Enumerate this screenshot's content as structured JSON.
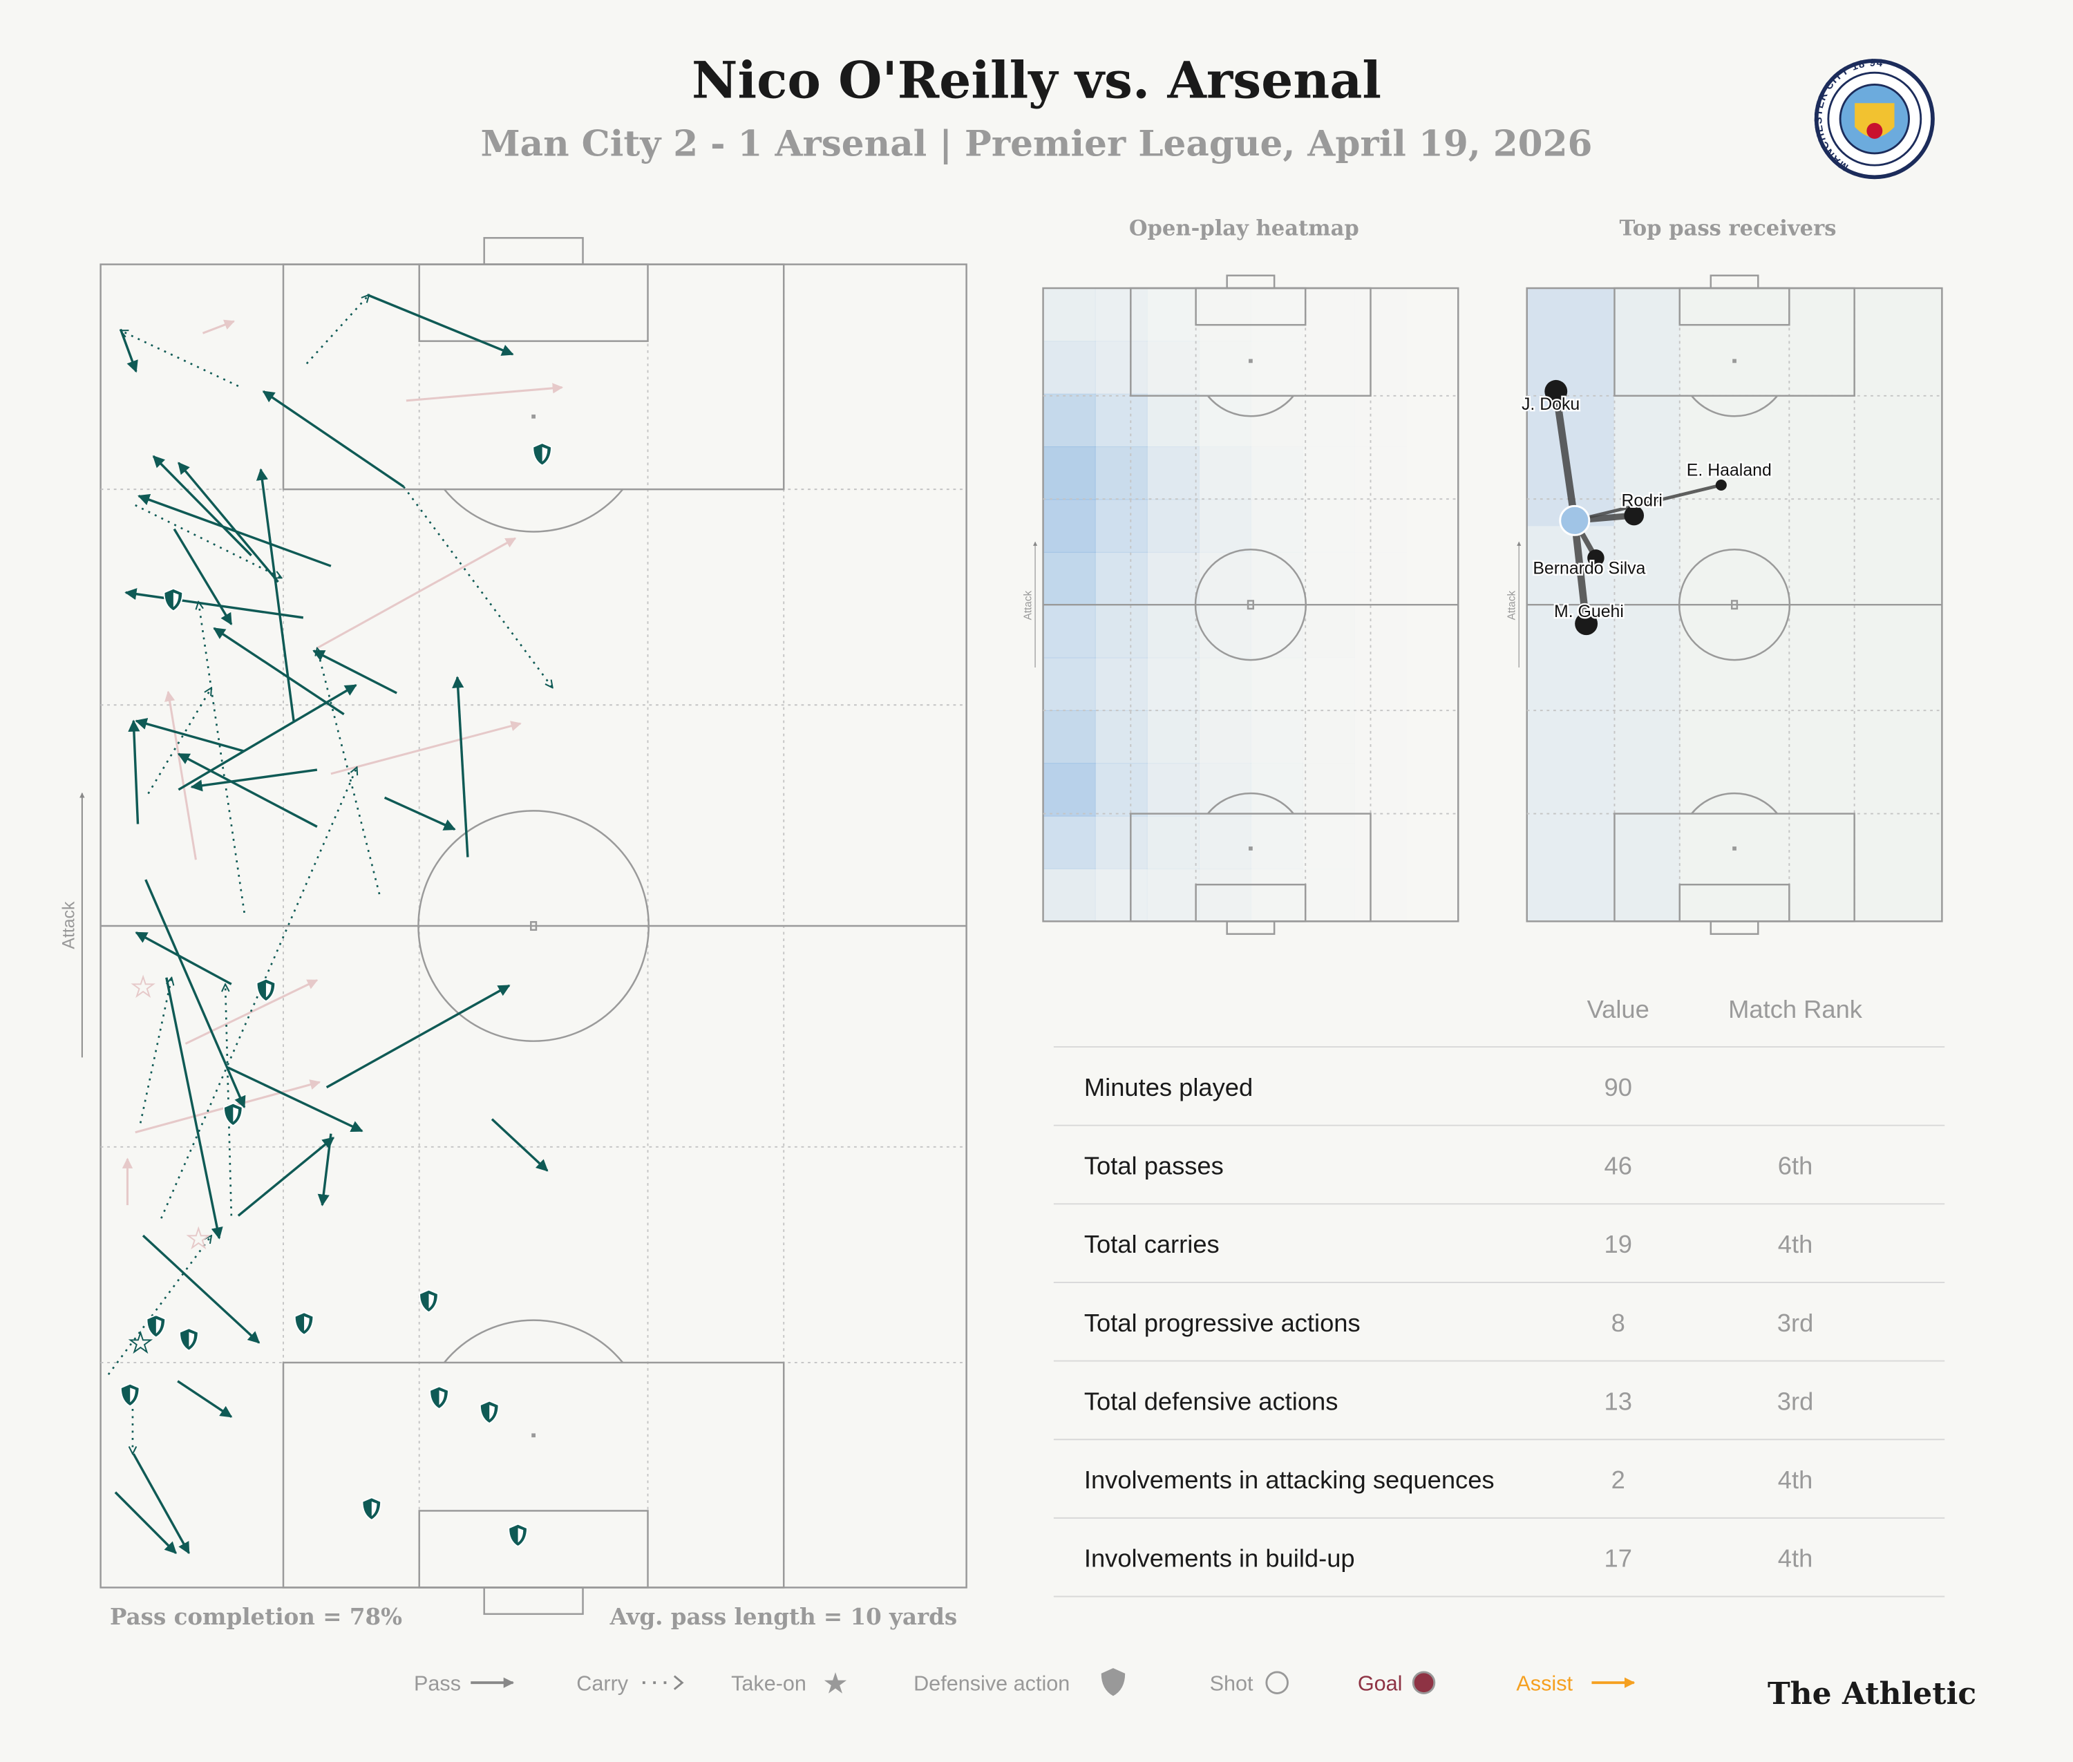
{
  "header": {
    "title": "Nico O'Reilly vs. Arsenal",
    "subtitle": "Man City 2 - 1 Arsenal | Premier League, April 19, 2026",
    "club_crest_text": "MANCHESTER CITY 18 94"
  },
  "colors": {
    "pass": "#0f5a55",
    "faded": "#e6c9c9",
    "heat": "#7fb0e0",
    "node": "#1a1a1a",
    "player_node": "#a0c4e6",
    "goal": "#8e3344",
    "assist": "#f5a020",
    "muted": "#999999"
  },
  "action_map": {
    "attack_label": "Attack",
    "pass_completion": "Pass completion = 78%",
    "avg_pass_length": "Avg. pass length = 10 yards",
    "chart_data": {
      "type": "scatter",
      "coordinate_units": "percent of pitch (x: width 0-100 left to right, y: length 0-100 toward attack)",
      "passes": [
        [
          30.8,
          97.7,
          47.6,
          93.2
        ],
        [
          35.0,
          83.2,
          18.8,
          90.4
        ],
        [
          2.3,
          95.1,
          4.1,
          91.9
        ],
        [
          26.6,
          77.2,
          4.4,
          82.5
        ],
        [
          17.4,
          78.0,
          6.1,
          85.5
        ],
        [
          20.5,
          76.0,
          9.0,
          85.0
        ],
        [
          22.3,
          65.5,
          18.5,
          84.5
        ],
        [
          23.4,
          73.3,
          2.9,
          75.2
        ],
        [
          34.2,
          67.6,
          24.6,
          70.8
        ],
        [
          16.6,
          63.2,
          4.1,
          65.5
        ],
        [
          28.1,
          66.0,
          13.1,
          72.5
        ],
        [
          25.0,
          57.5,
          9.0,
          63.0
        ],
        [
          9.0,
          60.3,
          29.5,
          68.2
        ],
        [
          25.0,
          61.8,
          10.5,
          60.5
        ],
        [
          42.4,
          55.2,
          41.2,
          68.8
        ],
        [
          32.8,
          59.7,
          40.9,
          57.3
        ],
        [
          4.3,
          57.7,
          3.8,
          65.5
        ],
        [
          5.2,
          53.5,
          16.6,
          36.3
        ],
        [
          15.1,
          45.6,
          4.1,
          49.5
        ],
        [
          26.1,
          37.8,
          47.2,
          45.5
        ],
        [
          14.7,
          39.3,
          30.2,
          34.5
        ],
        [
          45.2,
          35.4,
          51.6,
          31.5
        ],
        [
          7.6,
          46.1,
          13.7,
          26.4
        ],
        [
          26.6,
          34.3,
          25.6,
          28.9
        ],
        [
          15.9,
          28.1,
          26.9,
          34.0
        ],
        [
          4.9,
          26.6,
          18.3,
          18.5
        ],
        [
          8.9,
          15.6,
          15.1,
          12.9
        ],
        [
          3.8,
          10.1,
          10.2,
          2.6
        ],
        [
          1.7,
          7.2,
          8.7,
          2.6
        ],
        [
          8.5,
          80.0,
          15.1,
          72.8
        ]
      ],
      "carries": [
        [
          23.8,
          92.5,
          31.0,
          97.7
        ],
        [
          15.9,
          90.8,
          2.3,
          95.0
        ],
        [
          35.0,
          83.2,
          52.2,
          68.0
        ],
        [
          4.0,
          81.8,
          20.9,
          76.3
        ],
        [
          32.2,
          52.4,
          25.0,
          71.0
        ],
        [
          0.9,
          16.1,
          12.8,
          26.6
        ],
        [
          3.7,
          14.6,
          3.7,
          10.1
        ],
        [
          4.6,
          35.1,
          8.2,
          46.1
        ],
        [
          7.0,
          27.9,
          29.6,
          62.0
        ],
        [
          16.6,
          51.0,
          11.3,
          74.5
        ],
        [
          15.1,
          28.1,
          14.4,
          45.6
        ],
        [
          5.5,
          60.0,
          12.8,
          68.0
        ]
      ],
      "unsuccessful_passes": [
        [
          35.3,
          89.7,
          53.3,
          90.7
        ],
        [
          25.0,
          71.0,
          47.9,
          79.3
        ],
        [
          11.8,
          94.8,
          15.4,
          95.7
        ],
        [
          26.6,
          61.5,
          48.5,
          65.3
        ],
        [
          4.0,
          34.4,
          25.3,
          38.2
        ],
        [
          9.8,
          41.1,
          25.0,
          45.9
        ],
        [
          3.1,
          28.9,
          3.1,
          32.4
        ],
        [
          11.0,
          55.0,
          7.8,
          67.7
        ]
      ],
      "defensive_actions": [
        [
          51.0,
          85.7
        ],
        [
          8.4,
          74.7
        ],
        [
          19.1,
          45.2
        ],
        [
          15.3,
          35.8
        ],
        [
          37.9,
          21.7
        ],
        [
          23.5,
          20.0
        ],
        [
          6.4,
          19.8
        ],
        [
          10.2,
          18.8
        ],
        [
          3.4,
          14.6
        ],
        [
          39.1,
          14.4
        ],
        [
          44.9,
          13.3
        ],
        [
          31.3,
          6.0
        ],
        [
          48.2,
          4.0
        ]
      ],
      "take_ons": [
        {
          "x": 4.9,
          "y": 45.4,
          "successful": false
        },
        {
          "x": 11.3,
          "y": 26.4,
          "successful": false
        },
        {
          "x": 4.6,
          "y": 18.5,
          "successful": true
        }
      ]
    }
  },
  "heatmap": {
    "title": "Open-play heatmap",
    "attack_label": "Attack",
    "chart_data": {
      "type": "heatmap",
      "grid_cols": 8,
      "grid_rows": 12,
      "values": [
        [
          0.15,
          0.12,
          0.06,
          0.03,
          0.02,
          0.01,
          0.01,
          0.0
        ],
        [
          0.25,
          0.18,
          0.08,
          0.04,
          0.02,
          0.01,
          0.01,
          0.0
        ],
        [
          0.55,
          0.35,
          0.15,
          0.06,
          0.03,
          0.02,
          0.01,
          0.0
        ],
        [
          0.75,
          0.5,
          0.25,
          0.1,
          0.05,
          0.02,
          0.01,
          0.0
        ],
        [
          0.7,
          0.45,
          0.25,
          0.12,
          0.05,
          0.02,
          0.01,
          0.0
        ],
        [
          0.6,
          0.35,
          0.18,
          0.08,
          0.05,
          0.02,
          0.01,
          0.0
        ],
        [
          0.45,
          0.3,
          0.15,
          0.08,
          0.05,
          0.03,
          0.01,
          0.0
        ],
        [
          0.4,
          0.25,
          0.12,
          0.07,
          0.04,
          0.02,
          0.01,
          0.0
        ],
        [
          0.55,
          0.3,
          0.15,
          0.08,
          0.05,
          0.03,
          0.01,
          0.0
        ],
        [
          0.7,
          0.35,
          0.18,
          0.1,
          0.06,
          0.03,
          0.01,
          0.0
        ],
        [
          0.45,
          0.25,
          0.15,
          0.1,
          0.05,
          0.02,
          0.01,
          0.0
        ],
        [
          0.2,
          0.12,
          0.1,
          0.08,
          0.04,
          0.02,
          0.01,
          0.0
        ]
      ]
    }
  },
  "receivers": {
    "title": "Top pass receivers",
    "attack_label": "Attack",
    "chart_data": {
      "type": "network",
      "player": {
        "x": 11.5,
        "y": 63.3
      },
      "nodes": [
        {
          "name": "J. Doku",
          "x": 7.0,
          "y": 83.7,
          "size": 3
        },
        {
          "name": "E. Haaland",
          "x": 46.8,
          "y": 68.9,
          "size": 1
        },
        {
          "name": "Rodri",
          "x": 25.8,
          "y": 64.1,
          "size": 2.5
        },
        {
          "name": "Bernardo Silva",
          "x": 16.6,
          "y": 57.4,
          "size": 2
        },
        {
          "name": "M. Guehi",
          "x": 14.3,
          "y": 47.0,
          "size": 3
        }
      ]
    }
  },
  "stats": {
    "headers": {
      "value": "Value",
      "rank": "Match Rank"
    },
    "rows": [
      {
        "label": "Minutes played",
        "value": "90",
        "rank": ""
      },
      {
        "label": "Total passes",
        "value": "46",
        "rank": "6th"
      },
      {
        "label": "Total carries",
        "value": "19",
        "rank": "4th"
      },
      {
        "label": "Total progressive actions",
        "value": "8",
        "rank": "3rd"
      },
      {
        "label": "Total defensive actions",
        "value": "13",
        "rank": "3rd"
      },
      {
        "label": "Involvements in attacking sequences",
        "value": "2",
        "rank": "4th"
      },
      {
        "label": "Involvements in build-up",
        "value": "17",
        "rank": "4th"
      }
    ]
  },
  "legend": {
    "pass": "Pass",
    "carry": "Carry",
    "take_on": "Take-on",
    "defensive_action": "Defensive action",
    "shot": "Shot",
    "goal": "Goal",
    "assist": "Assist"
  },
  "footer": {
    "brand": "The Athletic"
  }
}
